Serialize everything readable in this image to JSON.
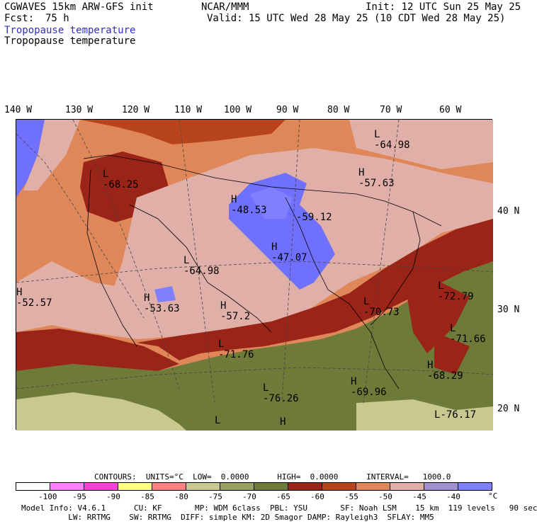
{
  "header": {
    "model_title": "CGWAVES 15km ARW-GFS init",
    "fcst_label": "Fcst:",
    "fcst_value": "75 h",
    "org": "NCAR/MMM",
    "init": "Init: 12 UTC Sun 25 May 25",
    "valid": "Valid: 15 UTC Wed 28 May 25 (10 CDT Wed 28 May 25)",
    "field_title_blue": "Tropopause temperature",
    "field_title_black": "Tropopause temperature"
  },
  "longitudes": [
    "140 W",
    "130 W",
    "120 W",
    "110 W",
    "100 W",
    "90 W",
    "80 W",
    "70 W",
    "60 W"
  ],
  "latitudes": [
    "40 N",
    "30 N",
    "20 N"
  ],
  "extrema": [
    {
      "letter": "L",
      "value": "-64.98"
    },
    {
      "letter": "L",
      "value": "-68.25"
    },
    {
      "letter": "H",
      "value": "-57.63"
    },
    {
      "letter": "H",
      "value": "-48.53"
    },
    {
      "letter": "",
      "value": "-59.12"
    },
    {
      "letter": "H",
      "value": "-47.07"
    },
    {
      "letter": "L",
      "value": "-64.98"
    },
    {
      "letter": "H",
      "value": "-52.57"
    },
    {
      "letter": "H",
      "value": "-53.63"
    },
    {
      "letter": "H",
      "value": "-57.2"
    },
    {
      "letter": "L",
      "value": "-70.73"
    },
    {
      "letter": "L",
      "value": "-72.79"
    },
    {
      "letter": "L",
      "value": "-71.66"
    },
    {
      "letter": "L",
      "value": "-71.76"
    },
    {
      "letter": "H",
      "value": "-68.29"
    },
    {
      "letter": "L",
      "value": "-76.26"
    },
    {
      "letter": "H",
      "value": "-69.96"
    },
    {
      "letter": "L",
      "value": "-76.17"
    },
    {
      "letter": "L",
      "value": ""
    },
    {
      "letter": "H",
      "value": ""
    }
  ],
  "contours": {
    "line": "CONTOURS:  UNITS=°C  LOW=  0.0000      HIGH=  0.0000      INTERVAL=   1000.0"
  },
  "colorbar": {
    "colors": [
      "#ffffff",
      "#ff80ff",
      "#ff40d8",
      "#ffff80",
      "#ff8080",
      "#c8c890",
      "#9aa060",
      "#6e7a38",
      "#9a2418",
      "#b8441c",
      "#e0875a",
      "#e0b0a8",
      "#a090d0",
      "#8080ff",
      "#6e6eff",
      "#7070ff"
    ],
    "ticks": [
      "-100",
      "-95",
      "-90",
      "-85",
      "-80",
      "-75",
      "-70",
      "-65",
      "-60",
      "-55",
      "-50",
      "-45",
      "-40"
    ],
    "unit": "°C"
  },
  "footer": {
    "line1": "Model Info: V4.6.1      CU: KF       MP: WDM 6class  PBL: YSU       SF: Noah LSM    15 km  119 levels   90 sec",
    "line2": "          LW: RRTMG    SW: RRTMG  DIFF: simple KM: 2D Smagor DAMP: Rayleigh3  SFLAY: MM5"
  },
  "palette": {
    "olive": "#6e7a38",
    "lightolive": "#c8c890",
    "darkred": "#9a2418",
    "red": "#b8441c",
    "orange": "#e0875a",
    "pink": "#e0b0a8",
    "lavender": "#a090d0",
    "blue": "#7070ff"
  }
}
